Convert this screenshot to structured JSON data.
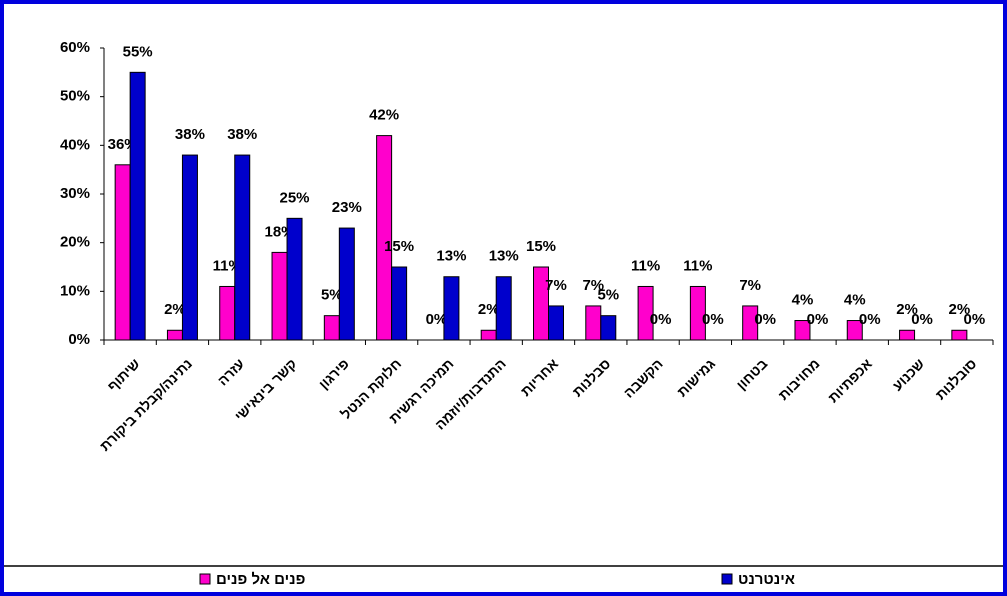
{
  "chart_data": {
    "type": "bar",
    "categories": [
      "שיתוף",
      "נתינה/קבלת ביקורת",
      "עזרה",
      "קשר בינאישי",
      "פירגון",
      "חלוקת הנטל",
      "תמיכה רגשית",
      "התנדבות/יוזמה",
      "אחריות",
      "סבלנות",
      "הקשבה",
      "גמישות",
      "בטחון",
      "מחויבות",
      "אכפתיות",
      "שכנוע",
      "סובלנות"
    ],
    "series": [
      {
        "name": "פנים אל פנים",
        "color": "#ff00cc",
        "values": [
          36,
          2,
          11,
          18,
          5,
          42,
          0,
          2,
          15,
          7,
          11,
          11,
          7,
          4,
          4,
          2,
          2
        ],
        "value_labels": [
          "36%",
          "2%",
          "11%",
          "18%",
          "5%",
          "42%",
          "0%",
          "2%",
          "15%",
          "7%",
          "11%",
          "11%",
          "7%",
          "4%",
          "4%",
          "2%",
          "2%"
        ]
      },
      {
        "name": "אינטרנט",
        "color": "#0000cc",
        "values": [
          55,
          38,
          38,
          25,
          23,
          15,
          13,
          13,
          7,
          5,
          0,
          0,
          0,
          0,
          0,
          0,
          0
        ],
        "value_labels": [
          "55%",
          "38%",
          "38%",
          "25%",
          "23%",
          "15%",
          "13%",
          "13%",
          "7%",
          "5%",
          "0%",
          "0%",
          "0%",
          "0%",
          "0%",
          "0%",
          "0%"
        ]
      }
    ],
    "ylim": [
      0,
      60
    ],
    "yticks": [
      {
        "value": 0,
        "label": "0%"
      },
      {
        "value": 10,
        "label": "10%"
      },
      {
        "value": 20,
        "label": "20%"
      },
      {
        "value": 30,
        "label": "30%"
      },
      {
        "value": 40,
        "label": "40%"
      },
      {
        "value": 50,
        "label": "50%"
      },
      {
        "value": 60,
        "label": "60%"
      }
    ],
    "grid": false,
    "legend": "bottom"
  }
}
